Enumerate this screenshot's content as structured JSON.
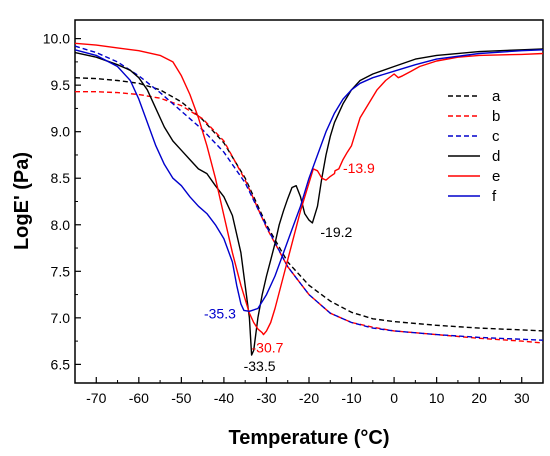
{
  "chart_data": {
    "type": "line",
    "title": "",
    "xlabel": "Temperature (°C)",
    "ylabel": "LogE' (Pa)",
    "xlim": [
      -75,
      35
    ],
    "ylim": [
      6.3,
      10.2
    ],
    "xticks": [
      -70,
      -60,
      -50,
      -40,
      -30,
      -20,
      -10,
      0,
      10,
      20,
      30
    ],
    "yticks": [
      6.5,
      7.0,
      7.5,
      8.0,
      8.5,
      9.0,
      9.5,
      10.0
    ],
    "xtick_labels": [
      "-70",
      "-60",
      "-50",
      "-40",
      "-30",
      "-20",
      "-10",
      "0",
      "10",
      "20",
      "30"
    ],
    "ytick_labels": [
      "6.5",
      "7.0",
      "7.5",
      "8.0",
      "8.5",
      "9.0",
      "9.5",
      "10.0"
    ],
    "grid": false,
    "legend_position": "right",
    "series": [
      {
        "name": "a",
        "color": "#000000",
        "style": "dashed",
        "x": [
          -75,
          -70,
          -65,
          -60,
          -55,
          -50,
          -45,
          -40,
          -35,
          -30,
          -25,
          -20,
          -15,
          -10,
          -5,
          0,
          10,
          20,
          30,
          35
        ],
        "y": [
          9.58,
          9.57,
          9.55,
          9.52,
          9.45,
          9.32,
          9.13,
          8.88,
          8.5,
          8.0,
          7.6,
          7.35,
          7.18,
          7.06,
          6.99,
          6.96,
          6.92,
          6.89,
          6.87,
          6.86
        ]
      },
      {
        "name": "b",
        "color": "#ff0000",
        "style": "dashed",
        "x": [
          -75,
          -70,
          -65,
          -60,
          -55,
          -50,
          -45,
          -40,
          -35,
          -30,
          -25,
          -20,
          -15,
          -10,
          -5,
          0,
          10,
          20,
          30,
          35
        ],
        "y": [
          9.43,
          9.43,
          9.42,
          9.4,
          9.36,
          9.28,
          9.14,
          8.9,
          8.48,
          7.97,
          7.55,
          7.25,
          7.05,
          6.95,
          6.9,
          6.86,
          6.82,
          6.78,
          6.75,
          6.73
        ]
      },
      {
        "name": "c",
        "color": "#0000cc",
        "style": "dashed",
        "x": [
          -75,
          -70,
          -65,
          -60,
          -55,
          -50,
          -45,
          -40,
          -35,
          -30,
          -25,
          -20,
          -15,
          -10,
          -5,
          0,
          10,
          20,
          30,
          35
        ],
        "y": [
          9.92,
          9.85,
          9.75,
          9.6,
          9.42,
          9.22,
          9.02,
          8.78,
          8.45,
          7.98,
          7.55,
          7.25,
          7.05,
          6.95,
          6.89,
          6.86,
          6.82,
          6.79,
          6.77,
          6.76
        ]
      },
      {
        "name": "d",
        "color": "#000000",
        "style": "solid",
        "x": [
          -75,
          -70,
          -65,
          -62,
          -60,
          -58,
          -56,
          -54,
          -52,
          -50,
          -48,
          -46,
          -44,
          -42,
          -40,
          -38,
          -36,
          -34,
          -33.5,
          -33,
          -32,
          -31,
          -30,
          -29,
          -28,
          -27,
          -26,
          -25,
          -24,
          -23,
          -22,
          -21,
          -20,
          -19.2,
          -18,
          -17,
          -16,
          -15,
          -14,
          -12,
          -10,
          -8,
          -5,
          0,
          5,
          10,
          20,
          30,
          35
        ],
        "y": [
          9.85,
          9.8,
          9.72,
          9.66,
          9.58,
          9.45,
          9.25,
          9.05,
          8.9,
          8.8,
          8.7,
          8.6,
          8.55,
          8.42,
          8.3,
          8.1,
          7.7,
          7.0,
          6.6,
          6.65,
          7.0,
          7.25,
          7.45,
          7.62,
          7.8,
          8.0,
          8.15,
          8.28,
          8.4,
          8.42,
          8.3,
          8.12,
          8.05,
          8.02,
          8.2,
          8.5,
          8.75,
          8.95,
          9.1,
          9.3,
          9.45,
          9.55,
          9.62,
          9.7,
          9.78,
          9.82,
          9.86,
          9.88,
          9.89
        ]
      },
      {
        "name": "e",
        "color": "#ff0000",
        "style": "solid",
        "x": [
          -75,
          -70,
          -65,
          -60,
          -55,
          -52,
          -50,
          -48,
          -46,
          -44,
          -42,
          -40,
          -38,
          -36,
          -34,
          -33,
          -32,
          -31,
          -30.7,
          -30,
          -29,
          -28,
          -26,
          -24,
          -22,
          -20,
          -19,
          -18,
          -17,
          -16,
          -15,
          -14,
          -13.9,
          -13,
          -12,
          -11,
          -10,
          -9,
          -8,
          -6,
          -4,
          -2,
          0,
          1,
          2,
          4,
          6,
          10,
          15,
          20,
          30,
          35
        ],
        "y": [
          9.95,
          9.93,
          9.9,
          9.87,
          9.82,
          9.75,
          9.6,
          9.4,
          9.15,
          8.85,
          8.5,
          8.1,
          7.7,
          7.35,
          7.05,
          6.95,
          6.88,
          6.84,
          6.82,
          6.86,
          6.95,
          7.1,
          7.45,
          7.8,
          8.15,
          8.45,
          8.6,
          8.58,
          8.5,
          8.48,
          8.52,
          8.55,
          8.58,
          8.6,
          8.7,
          8.78,
          8.85,
          9.0,
          9.15,
          9.3,
          9.45,
          9.55,
          9.62,
          9.58,
          9.6,
          9.65,
          9.7,
          9.76,
          9.8,
          9.82,
          9.83,
          9.84
        ]
      },
      {
        "name": "f",
        "color": "#0000cc",
        "style": "solid",
        "x": [
          -75,
          -70,
          -65,
          -62,
          -60,
          -58,
          -56,
          -54,
          -52,
          -50,
          -48,
          -46,
          -44,
          -42,
          -40,
          -38,
          -37,
          -36,
          -35.3,
          -34,
          -32,
          -30,
          -28,
          -26,
          -24,
          -22,
          -20,
          -18,
          -16,
          -14,
          -12,
          -10,
          -8,
          -5,
          0,
          5,
          10,
          20,
          30,
          35
        ],
        "y": [
          9.88,
          9.82,
          9.7,
          9.55,
          9.35,
          9.1,
          8.85,
          8.65,
          8.5,
          8.42,
          8.3,
          8.2,
          8.12,
          8.0,
          7.85,
          7.6,
          7.35,
          7.15,
          7.08,
          7.07,
          7.1,
          7.25,
          7.45,
          7.7,
          7.95,
          8.2,
          8.5,
          8.75,
          9.0,
          9.2,
          9.35,
          9.45,
          9.52,
          9.58,
          9.65,
          9.72,
          9.78,
          9.84,
          9.87,
          9.88
        ]
      }
    ],
    "annotations": [
      {
        "text": "-33.5",
        "x": -33.5,
        "y": 6.6,
        "color": "#000000"
      },
      {
        "text": "-30.7",
        "x": -30.7,
        "y": 6.82,
        "color": "#ff0000"
      },
      {
        "text": "-35.3",
        "x": -35.3,
        "y": 7.08,
        "color": "#0000cc"
      },
      {
        "text": "-19.2",
        "x": -19.2,
        "y": 8.02,
        "color": "#000000"
      },
      {
        "text": "-13.9",
        "x": -13.9,
        "y": 8.58,
        "color": "#ff0000"
      }
    ]
  }
}
